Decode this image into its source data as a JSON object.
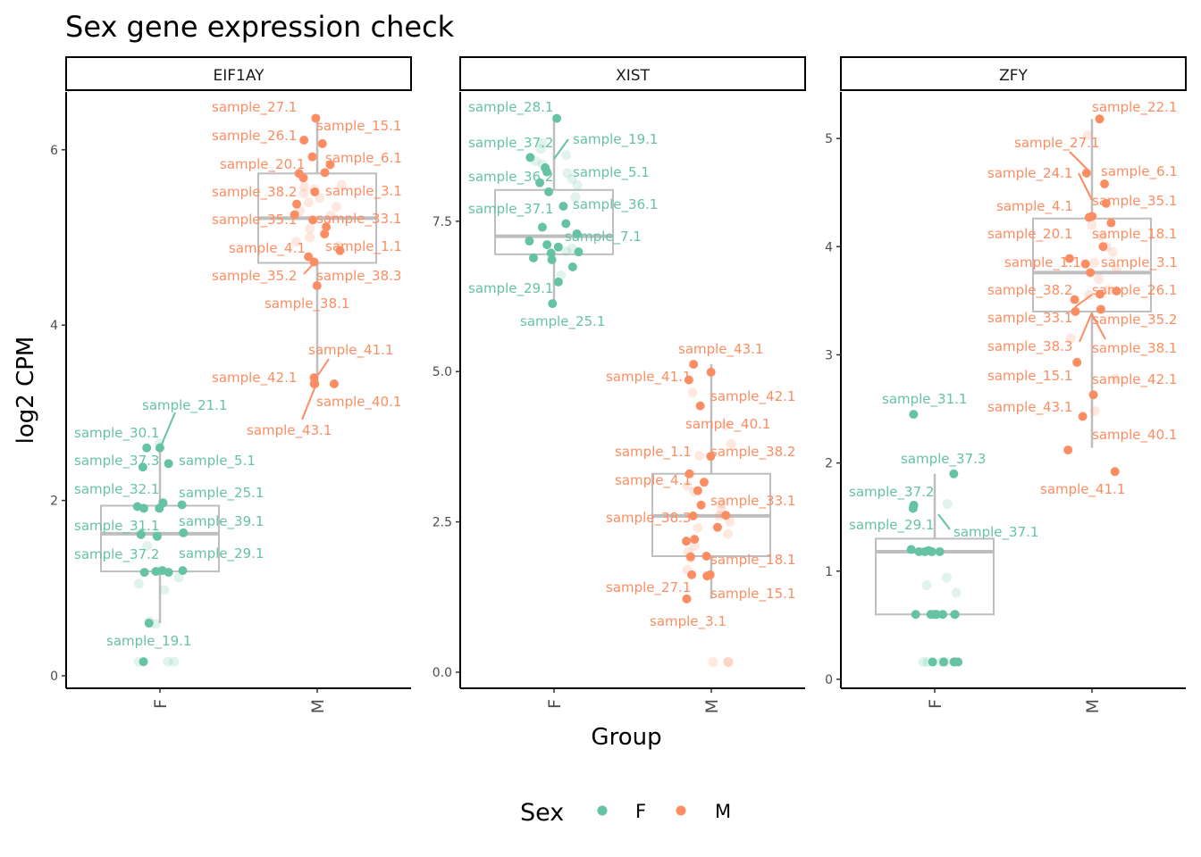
{
  "title": "Sex gene expression check",
  "colors": {
    "F": "#66c2a5",
    "M": "#fc8d62",
    "box": "#bebebe"
  },
  "chart_data": [
    {
      "type": "boxplot-jitter",
      "facet": "EIF1AY",
      "ylim": [
        -0.143,
        6.66
      ],
      "yticks": [
        0,
        2,
        4,
        6
      ],
      "ytick_labels": [
        "0",
        "2",
        "4",
        "6"
      ],
      "groups": [
        {
          "name": "F",
          "box": {
            "lower_whisker": 0.6,
            "q1": 1.19,
            "median": 1.62,
            "q3": 1.94,
            "upper_whisker": 2.62
          },
          "points": [
            2.6,
            2.6,
            2.42,
            2.38,
            1.97,
            1.91,
            1.91,
            1.93,
            1.95,
            1.63,
            1.61,
            1.59,
            1.2,
            1.18,
            1.19,
            1.2,
            1.18,
            0.6,
            0.16
          ],
          "faded_points": [
            2.65,
            1.98,
            1.63,
            1.48,
            1.61,
            1.2,
            1.05,
            1.12,
            0.98,
            0.59,
            0.62,
            0.16,
            0.16,
            0.16
          ]
        },
        {
          "name": "M",
          "box": {
            "lower_whisker": 3.33,
            "q1": 4.71,
            "median": 5.22,
            "q3": 5.73,
            "upper_whisker": 6.36
          },
          "points": [
            6.36,
            6.11,
            6.07,
            5.92,
            5.83,
            5.74,
            5.73,
            5.68,
            5.52,
            5.38,
            5.26,
            5.2,
            5.12,
            5.04,
            4.85,
            4.78,
            4.72,
            4.45,
            3.4,
            3.33,
            3.33,
            3.33
          ],
          "faded_points": [
            5.6,
            5.55,
            5.5,
            5.45,
            5.4,
            5.3,
            5.25,
            5.1,
            5.0,
            4.95,
            4.9,
            5.58,
            5.35
          ]
        }
      ],
      "labels": [
        {
          "text": "sample_27.1",
          "group": "M"
        },
        {
          "text": "sample_15.1",
          "group": "M"
        },
        {
          "text": "sample_26.1",
          "group": "M"
        },
        {
          "text": "sample_6.1",
          "group": "M"
        },
        {
          "text": "sample_20.1",
          "group": "M"
        },
        {
          "text": "sample_38.2",
          "group": "M"
        },
        {
          "text": "sample_3.1",
          "group": "M"
        },
        {
          "text": "sample_35.1",
          "group": "M"
        },
        {
          "text": "sample_33.1",
          "group": "M"
        },
        {
          "text": "sample_4.1",
          "group": "M"
        },
        {
          "text": "sample_1.1",
          "group": "M"
        },
        {
          "text": "sample_35.2",
          "group": "M"
        },
        {
          "text": "sample_38.3",
          "group": "M"
        },
        {
          "text": "sample_38.1",
          "group": "M"
        },
        {
          "text": "sample_41.1",
          "group": "M"
        },
        {
          "text": "sample_42.1",
          "group": "M"
        },
        {
          "text": "sample_40.1",
          "group": "M"
        },
        {
          "text": "sample_43.1",
          "group": "M"
        },
        {
          "text": "sample_21.1",
          "group": "F"
        },
        {
          "text": "sample_30.1",
          "group": "F"
        },
        {
          "text": "sample_37.3",
          "group": "F"
        },
        {
          "text": "sample_5.1",
          "group": "F"
        },
        {
          "text": "sample_32.1",
          "group": "F"
        },
        {
          "text": "sample_25.1",
          "group": "F"
        },
        {
          "text": "sample_31.1",
          "group": "F"
        },
        {
          "text": "sample_39.1",
          "group": "F"
        },
        {
          "text": "sample_37.2",
          "group": "F"
        },
        {
          "text": "sample_29.1",
          "group": "F"
        },
        {
          "text": "sample_19.1",
          "group": "F"
        }
      ]
    },
    {
      "type": "boxplot-jitter",
      "facet": "XIST",
      "ylim": [
        -0.267,
        9.65
      ],
      "yticks": [
        0,
        2.5,
        5,
        7.5
      ],
      "ytick_labels": [
        "0.0",
        "2.5",
        "5.0",
        "7.5"
      ],
      "groups": [
        {
          "name": "F",
          "box": {
            "lower_whisker": 6.13,
            "q1": 6.95,
            "median": 7.25,
            "q3": 8.02,
            "upper_whisker": 9.21
          },
          "points": [
            9.21,
            8.56,
            8.39,
            8.32,
            8.14,
            7.99,
            7.75,
            7.46,
            7.4,
            7.29,
            7.17,
            7.11,
            7.07,
            6.97,
            6.89,
            6.99,
            6.86,
            6.74,
            6.49,
            6.13
          ],
          "faded_points": [
            8.8,
            8.7,
            8.6,
            8.5,
            8.45,
            8.3,
            8.2,
            8.1,
            7.9,
            7.05,
            7.0,
            6.6
          ]
        },
        {
          "name": "M",
          "box": {
            "lower_whisker": 1.22,
            "q1": 1.93,
            "median": 2.6,
            "q3": 3.3,
            "upper_whisker": 5.12
          },
          "points": [
            5.12,
            4.99,
            4.86,
            4.43,
            3.59,
            3.3,
            3.16,
            3.02,
            2.78,
            2.61,
            2.6,
            2.21,
            2.18,
            2.41,
            1.92,
            1.93,
            1.62,
            1.62,
            1.6,
            1.22
          ],
          "faded_points": [
            4.65,
            4.1,
            3.8,
            3.6,
            3.1,
            3.0,
            2.8,
            2.7,
            2.6,
            2.5,
            2.4,
            2.3,
            2.1,
            2.0,
            1.9,
            1.7,
            0.17,
            0.17,
            0.17
          ]
        }
      ],
      "labels": [
        {
          "text": "sample_28.1",
          "group": "F"
        },
        {
          "text": "sample_37.2",
          "group": "F"
        },
        {
          "text": "sample_19.1",
          "group": "F"
        },
        {
          "text": "sample_36.2",
          "group": "F"
        },
        {
          "text": "sample_5.1",
          "group": "F"
        },
        {
          "text": "sample_37.1",
          "group": "F"
        },
        {
          "text": "sample_36.1",
          "group": "F"
        },
        {
          "text": "sample_7.1",
          "group": "F"
        },
        {
          "text": "sample_29.1",
          "group": "F"
        },
        {
          "text": "sample_25.1",
          "group": "F"
        },
        {
          "text": "sample_43.1",
          "group": "M"
        },
        {
          "text": "sample_41.1",
          "group": "M"
        },
        {
          "text": "sample_42.1",
          "group": "M"
        },
        {
          "text": "sample_40.1",
          "group": "M"
        },
        {
          "text": "sample_1.1",
          "group": "M"
        },
        {
          "text": "sample_38.2",
          "group": "M"
        },
        {
          "text": "sample_4.1",
          "group": "M"
        },
        {
          "text": "sample_33.1",
          "group": "M"
        },
        {
          "text": "sample_38.3",
          "group": "M"
        },
        {
          "text": "sample_18.1",
          "group": "M"
        },
        {
          "text": "sample_27.1",
          "group": "M"
        },
        {
          "text": "sample_15.1",
          "group": "M"
        },
        {
          "text": "sample_3.1",
          "group": "M"
        }
      ]
    },
    {
      "type": "boxplot-jitter",
      "facet": "ZFY",
      "ylim": [
        -0.083,
        5.43
      ],
      "yticks": [
        0,
        1,
        2,
        3,
        4,
        5
      ],
      "ytick_labels": [
        "0",
        "1",
        "2",
        "3",
        "4",
        "5"
      ],
      "groups": [
        {
          "name": "F",
          "box": {
            "lower_whisker": 0.6,
            "q1": 0.6,
            "median": 1.18,
            "q3": 1.3,
            "upper_whisker": 1.9
          },
          "points": [
            2.45,
            1.9,
            1.61,
            1.58,
            1.18,
            1.18,
            1.2,
            1.18,
            1.18,
            1.19,
            0.6,
            0.6,
            0.6,
            0.6,
            0.6,
            0.6,
            0.6,
            0.6,
            0.16,
            0.16,
            0.16,
            0.16,
            0.16
          ],
          "faded_points": [
            1.62,
            1.18,
            0.94,
            0.87,
            0.8,
            0.16,
            0.16,
            0.16,
            0.16
          ]
        },
        {
          "name": "M",
          "box": {
            "lower_whisker": 2.14,
            "q1": 3.4,
            "median": 3.76,
            "q3": 4.26,
            "upper_whisker": 5.18
          },
          "points": [
            5.18,
            4.68,
            4.58,
            4.4,
            4.28,
            4.27,
            4.22,
            4.0,
            3.89,
            3.84,
            3.76,
            3.59,
            3.56,
            3.51,
            3.42,
            3.4,
            2.93,
            2.63,
            2.43,
            2.12,
            1.92
          ],
          "faded_points": [
            5.03,
            4.2,
            4.1,
            4.0,
            3.95,
            3.85,
            3.8,
            3.7,
            3.6,
            3.55,
            3.15,
            2.78,
            2.48
          ]
        }
      ],
      "labels": [
        {
          "text": "sample_22.1",
          "group": "M"
        },
        {
          "text": "sample_27.1",
          "group": "M"
        },
        {
          "text": "sample_24.1",
          "group": "M"
        },
        {
          "text": "sample_6.1",
          "group": "M"
        },
        {
          "text": "sample_35.1",
          "group": "M"
        },
        {
          "text": "sample_4.1",
          "group": "M"
        },
        {
          "text": "sample_20.1",
          "group": "M"
        },
        {
          "text": "sample_18.1",
          "group": "M"
        },
        {
          "text": "sample_1.1",
          "group": "M"
        },
        {
          "text": "sample_3.1",
          "group": "M"
        },
        {
          "text": "sample_38.2",
          "group": "M"
        },
        {
          "text": "sample_26.1",
          "group": "M"
        },
        {
          "text": "sample_33.1",
          "group": "M"
        },
        {
          "text": "sample_35.2",
          "group": "M"
        },
        {
          "text": "sample_38.3",
          "group": "M"
        },
        {
          "text": "sample_38.1",
          "group": "M"
        },
        {
          "text": "sample_15.1",
          "group": "M"
        },
        {
          "text": "sample_42.1",
          "group": "M"
        },
        {
          "text": "sample_43.1",
          "group": "M"
        },
        {
          "text": "sample_40.1",
          "group": "M"
        },
        {
          "text": "sample_41.1",
          "group": "M"
        },
        {
          "text": "sample_31.1",
          "group": "F"
        },
        {
          "text": "sample_37.3",
          "group": "F"
        },
        {
          "text": "sample_37.2",
          "group": "F"
        },
        {
          "text": "sample_29.1",
          "group": "F"
        },
        {
          "text": "sample_37.1",
          "group": "F"
        }
      ]
    }
  ],
  "axes": {
    "xlabel": "Group",
    "ylabel": "log2 CPM",
    "xticks": [
      "F",
      "M"
    ]
  },
  "legend": {
    "title": "Sex",
    "position": "bottom",
    "entries": [
      {
        "label": "F",
        "key": "F"
      },
      {
        "label": "M",
        "key": "M"
      }
    ]
  }
}
